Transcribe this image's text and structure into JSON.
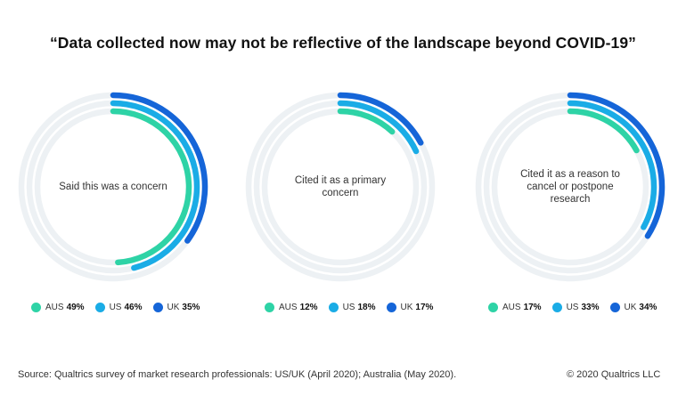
{
  "title": "“Data collected now may not be reflective of the landscape beyond COVID-19”",
  "colors": {
    "AUS": "#2ed3a6",
    "US": "#1aace6",
    "UK": "#1565d8",
    "track": "#edf1f4"
  },
  "chart_data": [
    {
      "type": "radial-bar",
      "label": "Said this was a concern",
      "series": [
        {
          "name": "AUS",
          "value": 49,
          "display": "49%"
        },
        {
          "name": "US",
          "value": 46,
          "display": "46%"
        },
        {
          "name": "UK",
          "value": 35,
          "display": "35%"
        }
      ]
    },
    {
      "type": "radial-bar",
      "label": "Cited it as a primary concern",
      "series": [
        {
          "name": "AUS",
          "value": 12,
          "display": "12%"
        },
        {
          "name": "US",
          "value": 18,
          "display": "18%"
        },
        {
          "name": "UK",
          "value": 17,
          "display": "17%"
        }
      ]
    },
    {
      "type": "radial-bar",
      "label": "Cited it as a  reason to cancel or postpone research",
      "series": [
        {
          "name": "AUS",
          "value": 17,
          "display": "17%"
        },
        {
          "name": "US",
          "value": 33,
          "display": "33%"
        },
        {
          "name": "UK",
          "value": 34,
          "display": "34%"
        }
      ]
    }
  ],
  "footer": {
    "source": "Source: Qualtrics survey of market research professionals: US/UK (April 2020); Australia (May 2020).",
    "copyright": "© 2020 Qualtrics LLC"
  }
}
